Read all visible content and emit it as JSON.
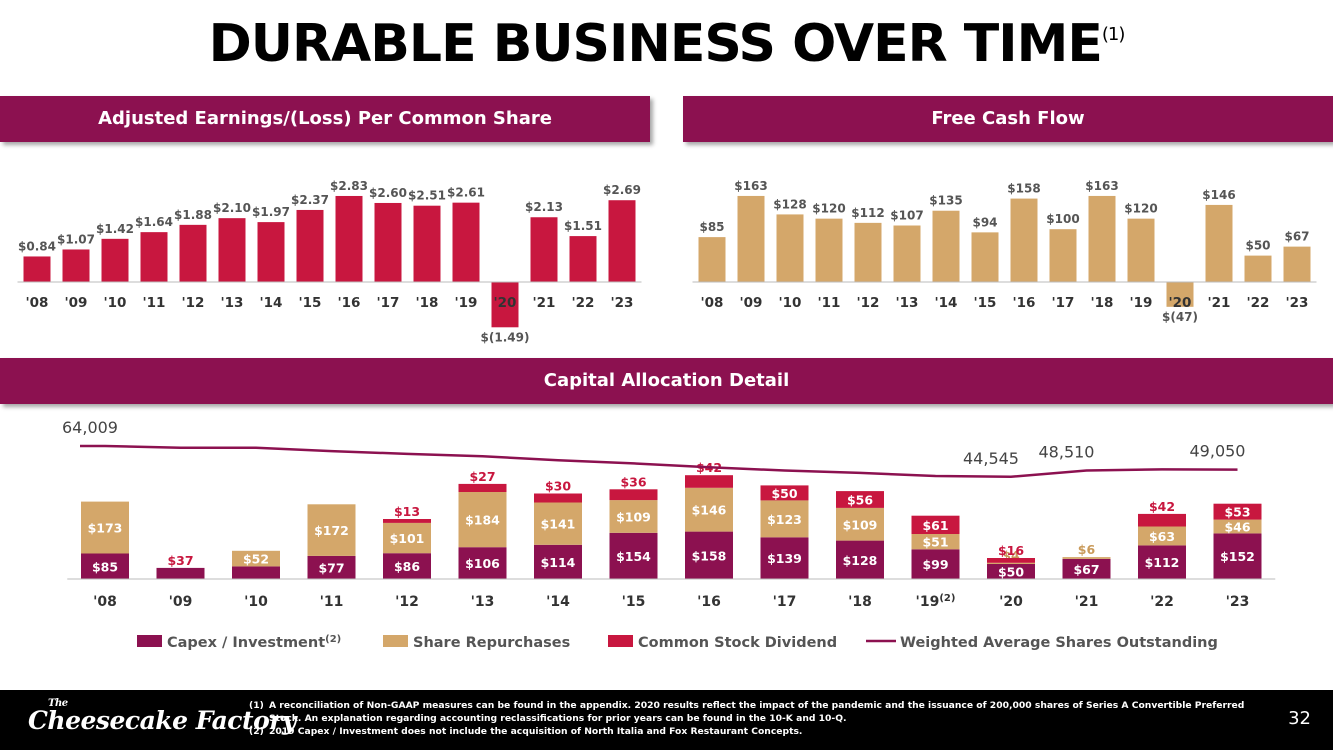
{
  "title": "DURABLE BUSINESS OVER TIME",
  "title_note": "(1)",
  "eps_header": "Adjusted Earnings/(Loss) Per Common Share",
  "fcf_header": "Free Cash Flow",
  "cap_header": "Capital Allocation Detail",
  "colors": {
    "banner": "#8c1150",
    "eps_bar": "#c8173f",
    "fcf_bar": "#d4a76a",
    "capex": "#8c1150",
    "repurchase": "#d4a76a",
    "dividend": "#c8173f",
    "shares_line": "#8c1150"
  },
  "chart_data": [
    {
      "type": "bar",
      "title": "Adjusted Earnings/(Loss) Per Common Share",
      "categories": [
        "'08",
        "'09",
        "'10",
        "'11",
        "'12",
        "'13",
        "'14",
        "'15",
        "'16",
        "'17",
        "'18",
        "'19",
        "'20",
        "'21",
        "'22",
        "'23"
      ],
      "values": [
        0.84,
        1.07,
        1.42,
        1.64,
        1.88,
        2.1,
        1.97,
        2.37,
        2.83,
        2.6,
        2.51,
        2.61,
        -1.49,
        2.13,
        1.51,
        2.69
      ],
      "labels": [
        "$0.84",
        "$1.07",
        "$1.42",
        "$1.64",
        "$1.88",
        "$2.10",
        "$1.97",
        "$2.37",
        "$2.83",
        "$2.60",
        "$2.51",
        "$2.61",
        "$(1.49)",
        "$2.13",
        "$1.51",
        "$2.69"
      ],
      "highlight_index": 12
    },
    {
      "type": "bar",
      "title": "Free Cash Flow",
      "categories": [
        "'08",
        "'09",
        "'10",
        "'11",
        "'12",
        "'13",
        "'14",
        "'15",
        "'16",
        "'17",
        "'18",
        "'19",
        "'20",
        "'21",
        "'22",
        "'23"
      ],
      "values": [
        85,
        163,
        128,
        120,
        112,
        107,
        135,
        94,
        158,
        100,
        163,
        120,
        -47,
        146,
        50,
        67
      ],
      "labels": [
        "$85",
        "$163",
        "$128",
        "$120",
        "$112",
        "$107",
        "$135",
        "$94",
        "$158",
        "$100",
        "$163",
        "$120",
        "$(47)",
        "$146",
        "$50",
        "$67"
      ],
      "highlight_index": 12
    },
    {
      "type": "bar",
      "stacked": true,
      "title": "Capital Allocation Detail",
      "categories": [
        "'08",
        "'09",
        "'10",
        "'11",
        "'12",
        "'13",
        "'14",
        "'15",
        "'16",
        "'17",
        "'18",
        "'19",
        "'20",
        "'21",
        "'22",
        "'23"
      ],
      "category_notes": [
        "",
        "",
        "",
        "",
        "",
        "",
        "",
        "",
        "",
        "",
        "",
        "(2)",
        "",
        "",
        "",
        ""
      ],
      "series": [
        {
          "name": "Capex / Investment",
          "name_note": "(2)",
          "values": [
            85,
            37,
            42,
            77,
            86,
            106,
            114,
            154,
            158,
            139,
            128,
            99,
            50,
            67,
            112,
            152
          ]
        },
        {
          "name": "Share Repurchases",
          "values": [
            173,
            0,
            52,
            172,
            101,
            184,
            141,
            109,
            146,
            123,
            109,
            51,
            4,
            6,
            63,
            46
          ]
        },
        {
          "name": "Common Stock Dividend",
          "values": [
            0,
            0,
            0,
            0,
            13,
            27,
            30,
            36,
            42,
            50,
            56,
            61,
            16,
            0,
            42,
            53
          ]
        }
      ],
      "line_series": {
        "name": "Weighted Average Shares Outstanding",
        "values": [
          64009,
          62900,
          62950,
          60800,
          59000,
          57500,
          55000,
          53000,
          50500,
          48500,
          47000,
          45000,
          44545,
          48510,
          49200,
          49050
        ],
        "labels": [
          "64,009",
          "",
          "",
          "",
          "",
          "",
          "",
          "",
          "",
          "",
          "",
          "",
          "44,545",
          "48,510",
          "",
          "49,050"
        ]
      }
    }
  ],
  "footnotes": [
    {
      "num": "(1)",
      "text": "A reconciliation of Non-GAAP measures can be found in the appendix. 2020 results reflect the impact of the pandemic and the issuance of 200,000 shares of Series A Convertible Preferred Stock. An explanation regarding accounting reclassifications for prior years can be found in the 10-K and 10-Q."
    },
    {
      "num": "(2)",
      "text": "2019 Capex / Investment does not include the acquisition of North Italia and Fox Restaurant Concepts."
    }
  ],
  "logo": {
    "the": "The",
    "name": "Cheesecake Factory"
  },
  "page_number": "32"
}
